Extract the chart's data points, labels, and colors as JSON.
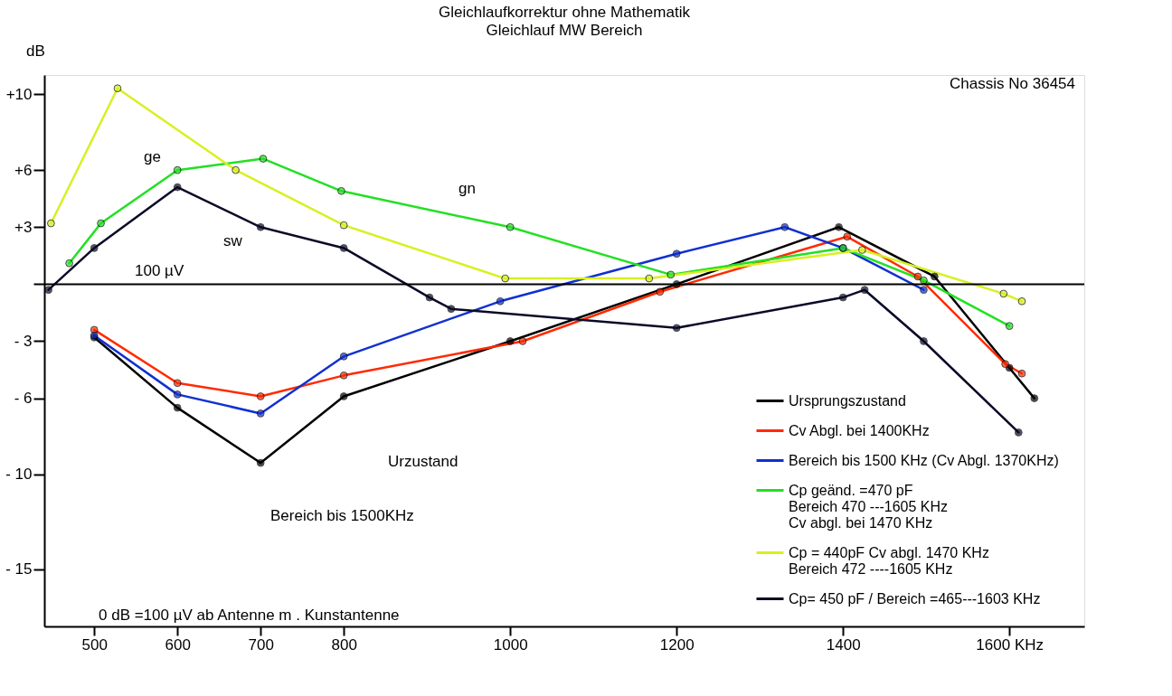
{
  "chart_data": {
    "type": "line",
    "title": "Gleichlaufkorrektur ohne Mathematik",
    "subtitle": "Gleichlauf MW Bereich",
    "ylabel": "dB",
    "xlim": [
      440,
      1690
    ],
    "ylim": [
      -18,
      11
    ],
    "xticks": [
      500,
      600,
      700,
      800,
      1000,
      1200,
      1400,
      {
        "value": 1600,
        "label": "1600 KHz"
      }
    ],
    "yticks": [
      {
        "value": -15,
        "label": "- 15"
      },
      {
        "value": -10,
        "label": "- 10"
      },
      {
        "value": -6,
        "label": "- 6"
      },
      {
        "value": -3,
        "label": "- 3"
      },
      {
        "value": 0,
        "label": null
      },
      {
        "value": 3,
        "label": "+3"
      },
      {
        "value": 6,
        "label": "+6"
      },
      {
        "value": 10,
        "label": "+10"
      }
    ],
    "ref_lines": [
      {
        "axis": "y",
        "value": 0,
        "color": "#000000"
      }
    ],
    "grid": false,
    "legend": "bottom right",
    "marker": "circle",
    "line_style": "solid",
    "series": [
      {
        "name": "Ursprungszustand",
        "color": "#000000",
        "x": [
          500,
          600,
          700,
          800,
          1000,
          1200,
          1395,
          1510,
          1600,
          1630
        ],
        "values": [
          -2.8,
          -6.5,
          -9.4,
          -5.9,
          -3,
          0,
          3,
          0.4,
          -4.4,
          -6
        ]
      },
      {
        "name": "Cv Abgl. bei 1400KHz",
        "color": "#ff2a00",
        "x": [
          500,
          600,
          700,
          800,
          1015,
          1180,
          1405,
          1490,
          1595,
          1615
        ],
        "values": [
          -2.4,
          -5.2,
          -5.9,
          -4.8,
          -3,
          -0.4,
          2.5,
          0.4,
          -4.2,
          -4.7
        ]
      },
      {
        "name": "Bereich bis  1500 KHz (Cv Abgl. 1370KHz)",
        "color": "#1030d0",
        "x": [
          500,
          600,
          700,
          800,
          988,
          1200,
          1330,
          1400,
          1497
        ],
        "values": [
          -2.7,
          -5.8,
          -6.8,
          -3.8,
          -0.9,
          1.6,
          3,
          1.9,
          -0.3
        ]
      },
      {
        "name": "Cp geänd. =470 pF\nBereich 470 ---1605 KHz\nCv abgl. bei 1470 KHz",
        "color": "#22e022",
        "x": [
          470,
          508,
          600,
          703,
          797,
          1000,
          1193,
          1400,
          1497,
          1600
        ],
        "values": [
          1.1,
          3.2,
          6,
          6.6,
          4.9,
          3,
          0.5,
          1.9,
          0.2,
          -2.2
        ]
      },
      {
        "name": "Cp = 440pF  Cv abgl. 1470 KHz\nBereich 472 ----1605 KHz",
        "color": "#d8f020",
        "x": [
          448,
          528,
          670,
          800,
          994,
          1167,
          1423,
          1593,
          1615
        ],
        "values": [
          3.2,
          10.3,
          6,
          3.1,
          0.3,
          0.3,
          1.8,
          -0.5,
          -0.9
        ]
      },
      {
        "name": "Cp= 450 pF / Bereich =465---1603 KHz",
        "color": "#0a0a28",
        "x": [
          445,
          500,
          600,
          700,
          800,
          903,
          929,
          1200,
          1400,
          1426,
          1497,
          1611
        ],
        "values": [
          -0.3,
          1.9,
          5.1,
          3,
          1.9,
          -0.7,
          -1.3,
          -2.3,
          -0.7,
          -0.3,
          -3,
          -7.8
        ]
      }
    ],
    "annotations": [
      "Chassis No  36454",
      "0 dB =100  µV ab Antenne m . Kunstantenne",
      "100 µV",
      "ge",
      "gn",
      "sw",
      "Urzustand",
      "Bereich bis 1500KHz"
    ]
  }
}
